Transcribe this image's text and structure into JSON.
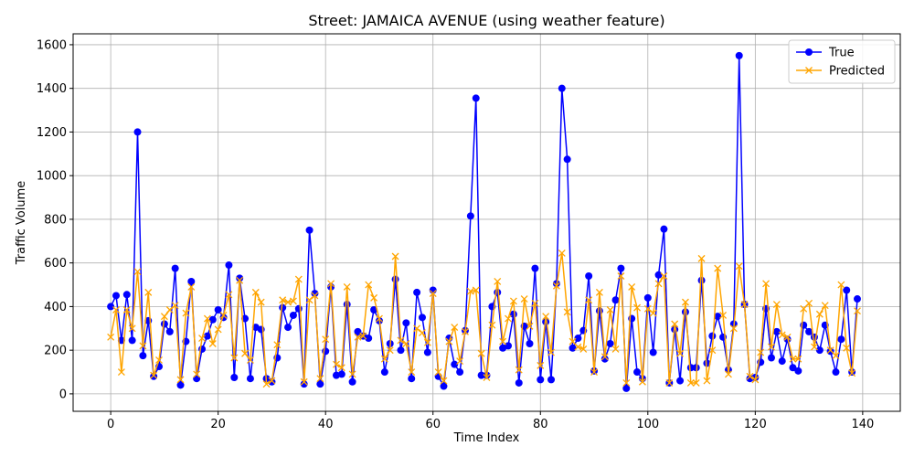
{
  "chart_data": {
    "type": "line",
    "title": "Street: JAMAICA AVENUE (using weather feature)",
    "xlabel": "Time Index",
    "ylabel": "Traffic Volume",
    "xlim": [
      -7,
      147
    ],
    "ylim": [
      -80,
      1650
    ],
    "xticks": [
      0,
      20,
      40,
      60,
      80,
      100,
      120,
      140
    ],
    "yticks": [
      0,
      200,
      400,
      600,
      800,
      1000,
      1200,
      1400,
      1600
    ],
    "grid": true,
    "legend_position": "top-right",
    "series": [
      {
        "name": "True",
        "color": "#0000ff",
        "marker": "circle",
        "values": [
          400,
          450,
          245,
          455,
          245,
          1200,
          175,
          335,
          80,
          125,
          320,
          285,
          575,
          40,
          240,
          515,
          70,
          205,
          265,
          340,
          385,
          350,
          590,
          75,
          530,
          345,
          70,
          305,
          295,
          70,
          55,
          165,
          395,
          305,
          360,
          390,
          45,
          750,
          460,
          45,
          195,
          490,
          85,
          90,
          410,
          55,
          285,
          265,
          255,
          385,
          335,
          100,
          230,
          525,
          200,
          325,
          70,
          465,
          350,
          190,
          475,
          80,
          35,
          255,
          135,
          100,
          290,
          815,
          1355,
          85,
          85,
          400,
          465,
          210,
          220,
          365,
          50,
          310,
          230,
          575,
          65,
          330,
          65,
          505,
          1400,
          1075,
          210,
          255,
          290,
          540,
          105,
          380,
          160,
          230,
          430,
          575,
          25,
          345,
          100,
          70,
          440,
          190,
          545,
          755,
          50,
          295,
          60,
          375,
          120,
          120,
          520,
          140,
          265,
          355,
          260,
          110,
          320,
          1550,
          410,
          70,
          75,
          145,
          390,
          165,
          285,
          150,
          250,
          120,
          105,
          315,
          285,
          260,
          200,
          315,
          195,
          100,
          250,
          475,
          100,
          435
        ]
      },
      {
        "name": "Predicted",
        "color": "#ffa500",
        "marker": "x",
        "values": [
          260,
          385,
          100,
          385,
          300,
          560,
          220,
          465,
          85,
          155,
          355,
          385,
          405,
          65,
          370,
          490,
          90,
          255,
          345,
          230,
          295,
          360,
          455,
          165,
          520,
          185,
          155,
          465,
          420,
          45,
          60,
          225,
          430,
          420,
          425,
          525,
          55,
          430,
          450,
          70,
          250,
          505,
          135,
          120,
          490,
          90,
          260,
          265,
          500,
          440,
          345,
          160,
          200,
          630,
          245,
          230,
          100,
          300,
          280,
          235,
          460,
          100,
          60,
          240,
          305,
          150,
          285,
          470,
          475,
          185,
          75,
          315,
          515,
          240,
          345,
          425,
          110,
          435,
          310,
          415,
          130,
          355,
          190,
          495,
          645,
          375,
          240,
          215,
          205,
          430,
          100,
          465,
          170,
          385,
          205,
          540,
          50,
          490,
          395,
          55,
          390,
          370,
          505,
          540,
          50,
          320,
          185,
          420,
          50,
          50,
          620,
          60,
          200,
          575,
          360,
          90,
          300,
          585,
          410,
          80,
          65,
          190,
          505,
          215,
          410,
          270,
          260,
          160,
          160,
          390,
          415,
          215,
          365,
          405,
          200,
          175,
          500,
          210,
          95,
          380
        ]
      }
    ]
  }
}
